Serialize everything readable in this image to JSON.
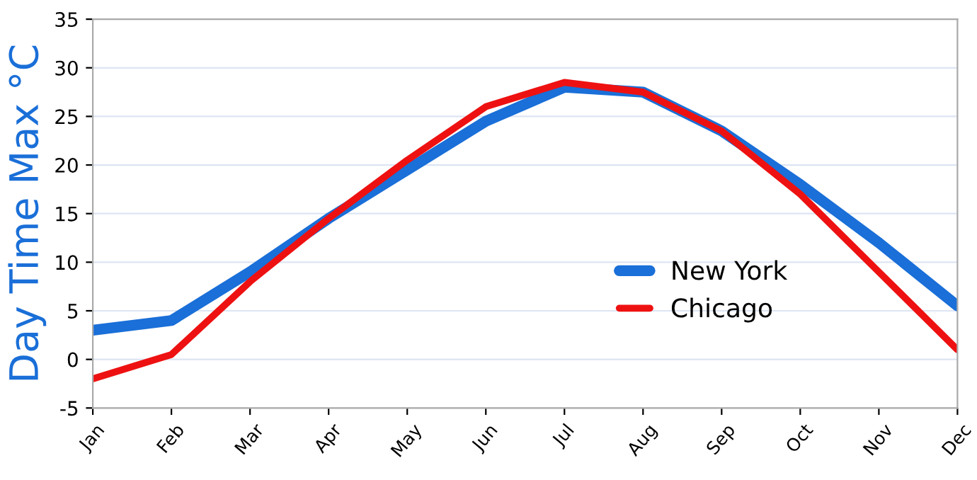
{
  "chart_data": {
    "type": "line",
    "ylabel": "Day Time Max °C",
    "categories": [
      "Jan",
      "Feb",
      "Mar",
      "Apr",
      "May",
      "Jun",
      "Jul",
      "Aug",
      "Sep",
      "Oct",
      "Nov",
      "Dec"
    ],
    "series": [
      {
        "name": "New York",
        "color": "#1a6fd8",
        "values": [
          3,
          4,
          9,
          14.5,
          19.5,
          24.5,
          28,
          27.5,
          23.5,
          18,
          12,
          5.5
        ]
      },
      {
        "name": "Chicago",
        "color": "#ee1111",
        "values": [
          -2,
          0.5,
          8,
          14.5,
          20.5,
          26,
          28.5,
          27.5,
          23.5,
          17,
          9,
          1
        ]
      }
    ],
    "ylim": [
      -5,
      35
    ],
    "yticks": [
      -5,
      0,
      5,
      10,
      15,
      20,
      25,
      30,
      35
    ],
    "grid": "y",
    "legend": "center right",
    "marker": "none",
    "line_style": "solid"
  }
}
